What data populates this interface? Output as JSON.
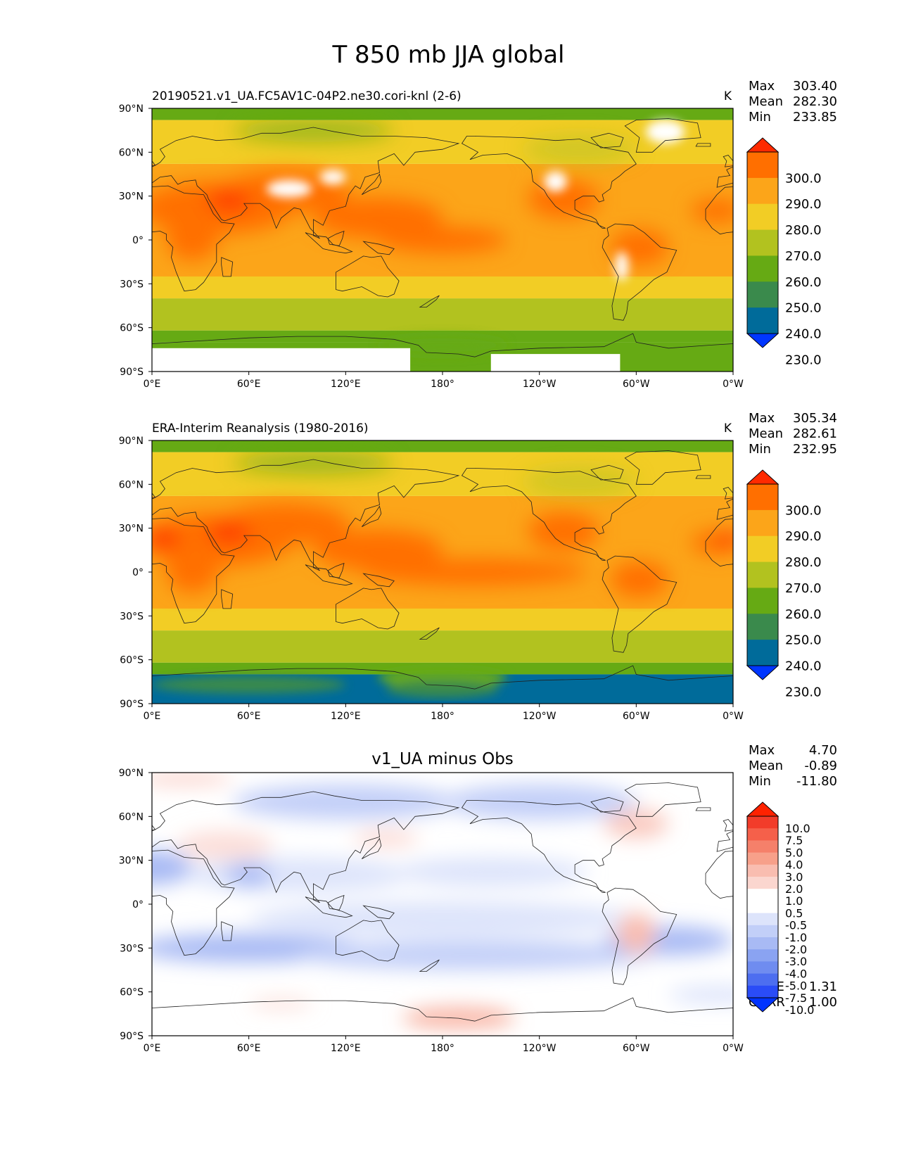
{
  "figure_title": "T 850 mb JJA global",
  "chart_data": [
    {
      "type": "heatmap",
      "panel": "test",
      "title_left": "20190521.v1_UA.FC5AV1C-04P2.ne30.cori-knl (2-6)",
      "units": "K",
      "stats": [
        {
          "label": "Max",
          "value": "303.40"
        },
        {
          "label": "Mean",
          "value": "282.30"
        },
        {
          "label": "Min",
          "value": "233.85"
        }
      ],
      "x_ticks": [
        "0°E",
        "60°E",
        "120°E",
        "180°",
        "120°W",
        "60°W",
        "0°W"
      ],
      "y_ticks": [
        "90°N",
        "60°N",
        "30°N",
        "0°",
        "30°S",
        "60°S",
        "90°S"
      ],
      "colorbar": {
        "levels": [
          "300.0",
          "290.0",
          "280.0",
          "270.0",
          "260.0",
          "250.0",
          "240.0",
          "230.0"
        ],
        "colors": [
          "#ff2a00",
          "#ff6f00",
          "#fca519",
          "#f2cd25",
          "#b2c21f",
          "#66aa14",
          "#3a8a4c",
          "#006b9a",
          "#0036ff"
        ]
      }
    },
    {
      "type": "heatmap",
      "panel": "reference",
      "title_left": "ERA-Interim Reanalysis (1980-2016)",
      "units": "K",
      "stats": [
        {
          "label": "Max",
          "value": "305.34"
        },
        {
          "label": "Mean",
          "value": "282.61"
        },
        {
          "label": "Min",
          "value": "232.95"
        }
      ],
      "x_ticks": [
        "0°E",
        "60°E",
        "120°E",
        "180°",
        "120°W",
        "60°W",
        "0°W"
      ],
      "y_ticks": [
        "90°N",
        "60°N",
        "30°N",
        "0°",
        "30°S",
        "60°S",
        "90°S"
      ],
      "colorbar": {
        "levels": [
          "300.0",
          "290.0",
          "280.0",
          "270.0",
          "260.0",
          "250.0",
          "240.0",
          "230.0"
        ],
        "colors": [
          "#ff2a00",
          "#ff6f00",
          "#fca519",
          "#f2cd25",
          "#b2c21f",
          "#66aa14",
          "#3a8a4c",
          "#006b9a",
          "#0036ff"
        ]
      }
    },
    {
      "type": "heatmap",
      "panel": "difference",
      "title_center": "v1_UA minus Obs",
      "stats": [
        {
          "label": "Max",
          "value": "4.70"
        },
        {
          "label": "Mean",
          "value": "-0.89"
        },
        {
          "label": "Min",
          "value": "-11.80"
        }
      ],
      "extra_stats": [
        {
          "label": "RMSE",
          "value": "1.31"
        },
        {
          "label": "CORR",
          "value": "1.00"
        }
      ],
      "x_ticks": [
        "0°E",
        "60°E",
        "120°E",
        "180°",
        "120°W",
        "60°W",
        "0°W"
      ],
      "y_ticks": [
        "90°N",
        "60°N",
        "30°N",
        "0°",
        "30°S",
        "60°S",
        "90°S"
      ],
      "colorbar": {
        "levels": [
          "10.0",
          "7.5",
          "5.0",
          "4.0",
          "3.0",
          "2.0",
          "1.0",
          "0.5",
          "-0.5",
          "-1.0",
          "-2.0",
          "-3.0",
          "-4.0",
          "-5.0",
          "-7.5",
          "-10.0"
        ],
        "colors": [
          "#ff2200",
          "#f23c2a",
          "#f5604a",
          "#f5806a",
          "#f7a08a",
          "#f9bdb0",
          "#fbd6cf",
          "#ffffff",
          "#ffffff",
          "#dde4fb",
          "#c2cff8",
          "#a8baf4",
          "#8aa3f2",
          "#6f8cf0",
          "#4d6ef0",
          "#2a4cf7",
          "#0033ff"
        ]
      }
    }
  ]
}
